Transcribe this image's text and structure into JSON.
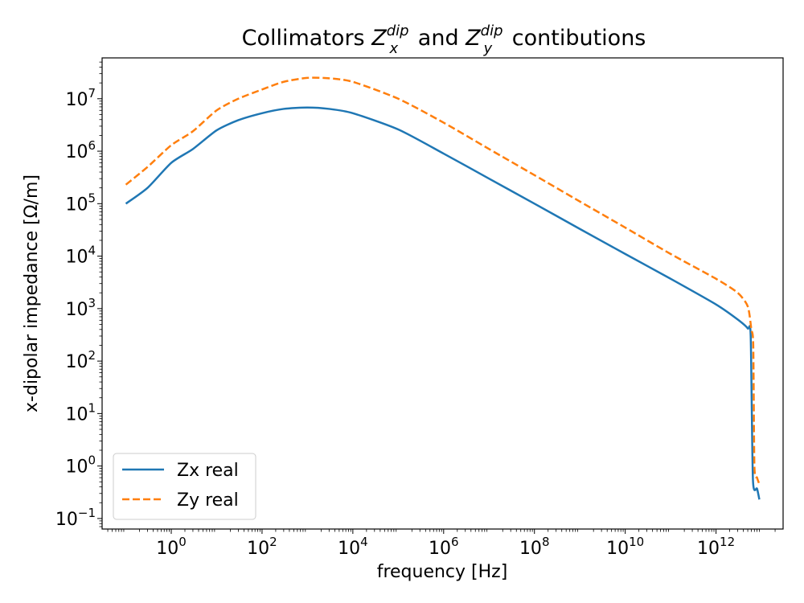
{
  "chart_data": {
    "type": "line",
    "title": {
      "prefix": "Collimators ",
      "z1_sup": "dip",
      "z1_sub": "x",
      "middle": " and ",
      "z2_sup": "dip",
      "z2_sub": "y",
      "suffix": " contibutions"
    },
    "xlabel": "frequency [Hz]",
    "ylabel": "x-dipolar impedance [Ω/m]",
    "xscale": "log",
    "yscale": "log",
    "xlim": [
      0.03,
      30000000000000.0
    ],
    "ylim": [
      0.063,
      60000000.0
    ],
    "x_ticks": [
      {
        "value": 1,
        "base": "10",
        "exp": "0"
      },
      {
        "value": 100,
        "base": "10",
        "exp": "2"
      },
      {
        "value": 10000,
        "base": "10",
        "exp": "4"
      },
      {
        "value": 1000000,
        "base": "10",
        "exp": "6"
      },
      {
        "value": 100000000,
        "base": "10",
        "exp": "8"
      },
      {
        "value": 10000000000,
        "base": "10",
        "exp": "10"
      },
      {
        "value": 1000000000000,
        "base": "10",
        "exp": "12"
      }
    ],
    "y_ticks": [
      {
        "value": 0.1,
        "base": "10",
        "exp": "−1"
      },
      {
        "value": 1,
        "base": "10",
        "exp": "0"
      },
      {
        "value": 10,
        "base": "10",
        "exp": "1"
      },
      {
        "value": 100,
        "base": "10",
        "exp": "2"
      },
      {
        "value": 1000,
        "base": "10",
        "exp": "3"
      },
      {
        "value": 10000,
        "base": "10",
        "exp": "4"
      },
      {
        "value": 100000,
        "base": "10",
        "exp": "5"
      },
      {
        "value": 1000000,
        "base": "10",
        "exp": "6"
      },
      {
        "value": 10000000,
        "base": "10",
        "exp": "7"
      }
    ],
    "grid": false,
    "legend_position": "lower-left",
    "series": [
      {
        "name": "Zx real",
        "color": "#1f77b4",
        "style": "solid",
        "points": [
          [
            0.1,
            100000
          ],
          [
            0.3,
            200000
          ],
          [
            1,
            600000
          ],
          [
            3,
            1100000
          ],
          [
            10,
            2500000
          ],
          [
            30,
            3900000
          ],
          [
            100,
            5300000
          ],
          [
            300,
            6400000
          ],
          [
            1000,
            6800000
          ],
          [
            3000,
            6400000
          ],
          [
            10000,
            5300000
          ],
          [
            100000,
            2600000
          ],
          [
            1000000,
            900000
          ],
          [
            10000000,
            300000
          ],
          [
            100000000,
            100000
          ],
          [
            1000000000,
            33000
          ],
          [
            10000000000,
            11000
          ],
          [
            100000000000,
            3700
          ],
          [
            1000000000000,
            1200
          ],
          [
            3000000000000,
            620
          ],
          [
            5000000000000,
            420
          ],
          [
            5800000000000,
            300
          ],
          [
            6500000000000,
            0.55
          ],
          [
            8000000000000,
            0.37
          ],
          [
            9000000000000,
            0.23
          ]
        ]
      },
      {
        "name": "Zy real",
        "color": "#ff7f0e",
        "style": "dashed",
        "points": [
          [
            0.1,
            230000
          ],
          [
            0.3,
            500000
          ],
          [
            1,
            1300000
          ],
          [
            3,
            2400000
          ],
          [
            10,
            6000000
          ],
          [
            30,
            10000000
          ],
          [
            100,
            15000000
          ],
          [
            300,
            21000000
          ],
          [
            1000,
            25000000
          ],
          [
            3000,
            24500000
          ],
          [
            10000,
            21000000
          ],
          [
            100000,
            10000000
          ],
          [
            1000000,
            3500000
          ],
          [
            10000000,
            1100000
          ],
          [
            100000000,
            350000
          ],
          [
            1000000000,
            110000
          ],
          [
            10000000000,
            35000
          ],
          [
            100000000000,
            11000
          ],
          [
            1000000000000,
            3700
          ],
          [
            3000000000000,
            2000
          ],
          [
            5000000000000,
            1100
          ],
          [
            6000000000000,
            400
          ],
          [
            6600000000000,
            200
          ],
          [
            7000000000000,
            1.0
          ],
          [
            8000000000000,
            0.6
          ],
          [
            9000000000000,
            0.45
          ]
        ]
      }
    ]
  }
}
